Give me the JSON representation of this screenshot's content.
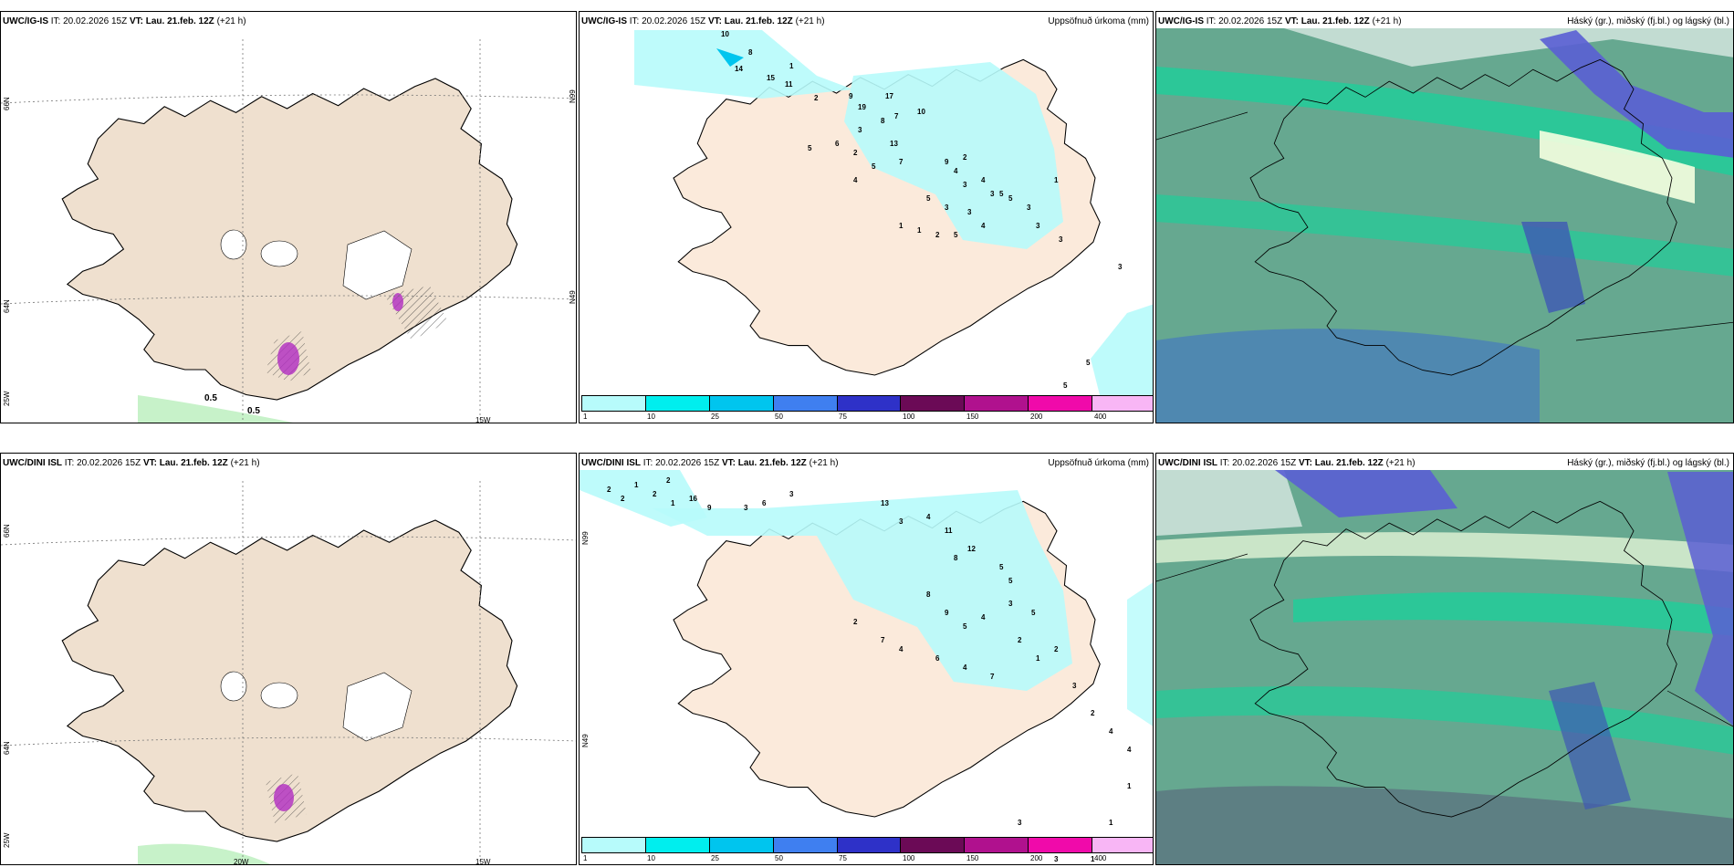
{
  "row1": {
    "wind": {
      "model": "UWC/IG-IS",
      "it_label": "IT:",
      "it": "20.02.2026 15Z",
      "vt_label": "VT:",
      "vt": "Lau. 21.feb. 12Z",
      "lead": "(+21 h)",
      "lat_labels": [
        "66N",
        "64N",
        "N99",
        "N49"
      ],
      "lon_labels": [
        "25W",
        "15W"
      ],
      "pcp_labels": [
        "0.5",
        "0.5"
      ]
    },
    "precip": {
      "model": "UWC/IG-IS",
      "it_label": "IT:",
      "it": "20.02.2026 15Z",
      "vt_label": "VT:",
      "vt": "Lau. 21.feb. 12Z",
      "lead": "(+21 h)",
      "title": "Uppsöfnuð úrkoma (mm)",
      "points": [
        "10",
        "8",
        "14",
        "15",
        "1",
        "11",
        "2",
        "9",
        "19",
        "17",
        "7",
        "10",
        "3",
        "8",
        "13",
        "7",
        "6",
        "5",
        "2",
        "5",
        "4",
        "9",
        "2",
        "4",
        "3",
        "4",
        "5",
        "5",
        "3",
        "1",
        "1",
        "2",
        "5",
        "3",
        "4",
        "3",
        "5",
        "3",
        "3",
        "1",
        "3",
        "3",
        "5",
        "5"
      ]
    },
    "cloud": {
      "model": "UWC/IG-IS",
      "it_label": "IT:",
      "it": "20.02.2026 15Z",
      "vt_label": "VT:",
      "vt": "Lau. 21.feb. 12Z",
      "lead": "(+21 h)",
      "title": "Háský (gr.), miðský (fj.bl.) og lágský (bl.)"
    }
  },
  "row2": {
    "wind": {
      "model": "UWC/DINI ISL",
      "it_label": "IT:",
      "it": "20.02.2026 15Z",
      "vt_label": "VT:",
      "vt": "Lau. 21.feb. 12Z",
      "lead": "(+21 h)",
      "lat_labels": [
        "66N",
        "64N",
        "25W"
      ],
      "lon_labels": [
        "20W",
        "15W"
      ]
    },
    "precip": {
      "model": "UWC/DINI ISL",
      "it_label": "IT:",
      "it": "20.02.2026 15Z",
      "vt_label": "VT:",
      "vt": "Lau. 21.feb. 12Z",
      "lead": "(+21 h)",
      "title": "Uppsöfnuð úrkoma (mm)",
      "lat_labels": [
        "N99",
        "N49"
      ],
      "points": [
        "2",
        "2",
        "1",
        "2",
        "2",
        "1",
        "16",
        "9",
        "3",
        "6",
        "3",
        "13",
        "3",
        "4",
        "11",
        "8",
        "12",
        "5",
        "5",
        "8",
        "9",
        "5",
        "4",
        "3",
        "5",
        "2",
        "7",
        "4",
        "6",
        "4",
        "7",
        "2",
        "1",
        "2",
        "3",
        "2",
        "4",
        "4",
        "1",
        "1",
        "1",
        "1",
        "2",
        "3",
        "2",
        "3"
      ]
    },
    "cloud": {
      "model": "UWC/DINI ISL",
      "it_label": "IT:",
      "it": "20.02.2026 15Z",
      "vt_label": "VT:",
      "vt": "Lau. 21.feb. 12Z",
      "lead": "(+21 h)",
      "title": "Háský (gr.), miðský (fj.bl.) og lágský (bl.)"
    }
  },
  "colorbar": {
    "ticks": [
      "1",
      "10",
      "25",
      "50",
      "75",
      "100",
      "150",
      "200",
      "400"
    ],
    "colors": [
      "#b7fbfb",
      "#00eeee",
      "#00c5ee",
      "#3f7ff0",
      "#2e31c8",
      "#6b0a56",
      "#b0118e",
      "#f00aaa",
      "#f8b6f5"
    ]
  },
  "colors": {
    "land": "#efe0cf",
    "precip_light": "#b7fbfb",
    "cloud_high": "#66a890",
    "cloud_mid": "#14d49b",
    "cloud_low": "#5a5ed4",
    "pcp_magenta": "#b02cc0"
  }
}
